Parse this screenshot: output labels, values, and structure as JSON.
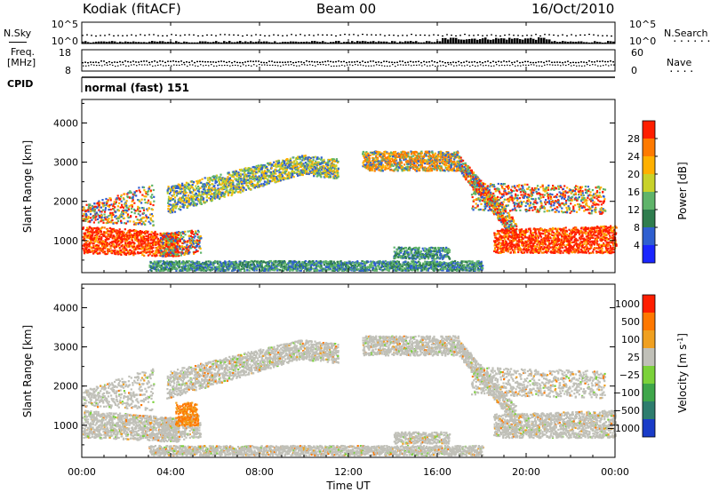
{
  "header": {
    "station": "Kodiak (fitACF)",
    "beam": "Beam 00",
    "date": "16/Oct/2010"
  },
  "top_panels": {
    "nsky_label": "N.Sky",
    "nsearch_label": "N.Search",
    "nsky_ticks": [
      "10^5",
      "10^0"
    ],
    "nsearch_ticks": [
      "10^5",
      "10^0"
    ],
    "freq_label": "Freq.",
    "freq_unit": "[MHz]",
    "freq_ticks": [
      "18",
      "8"
    ],
    "nave_label": "Nave",
    "nave_ticks": [
      "60",
      "0"
    ],
    "cpid_label": "CPID",
    "cpid_value": "normal (fast) 151"
  },
  "chart_data": [
    {
      "type": "heatmap",
      "name": "power",
      "ylabel": "Slant Range [km]",
      "ylim": [
        180,
        4600
      ],
      "y_ticks": [
        "1000",
        "2000",
        "3000",
        "4000"
      ],
      "xlim_hours": [
        0,
        24
      ],
      "colorbar": {
        "label": "Power [dB]",
        "ticks": [
          "4",
          "8",
          "12",
          "16",
          "20",
          "24",
          "28"
        ],
        "colors": [
          "#1a26ff",
          "#2f5fd0",
          "#2f7d4e",
          "#5fb46a",
          "#c8d22a",
          "#ffb000",
          "#ff7a00",
          "#ff1e00"
        ]
      }
    },
    {
      "type": "heatmap",
      "name": "velocity",
      "ylabel": "Slant Range [km]",
      "ylim": [
        180,
        4600
      ],
      "y_ticks": [
        "1000",
        "2000",
        "3000",
        "4000"
      ],
      "xlim_hours": [
        0,
        24
      ],
      "colorbar": {
        "label": "Velocity [m s",
        "label_sup": "-1",
        "label_end": "]",
        "ticks": [
          "1000",
          "500",
          "100",
          "25",
          "−25",
          "−100",
          "−500",
          "−1000"
        ],
        "colors": [
          "#1a3cc8",
          "#2e7d6e",
          "#3ea64a",
          "#7bd23a",
          "#c0c0b8",
          "#f0a020",
          "#ff7800",
          "#ff1e00"
        ]
      }
    }
  ],
  "xaxis": {
    "ticks": [
      "00:00",
      "04:00",
      "08:00",
      "12:00",
      "16:00",
      "20:00",
      "00:00"
    ],
    "label": "Time UT"
  }
}
